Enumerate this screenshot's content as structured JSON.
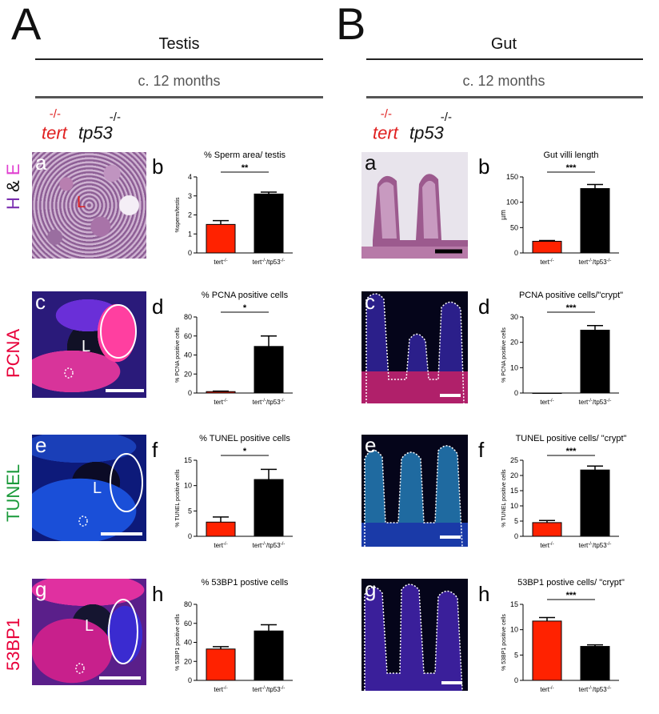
{
  "panel_A": {
    "letter": "A",
    "title": "Testis",
    "age": "c. 12 months"
  },
  "panel_B": {
    "letter": "B",
    "title": "Gut",
    "age": "c. 12 months"
  },
  "genotype": {
    "gene1": "tert",
    "sup1": "-/-",
    "gene2": "tp53",
    "sup2": "-/-"
  },
  "row_labels": {
    "he_h": "H",
    "he_amp": "&",
    "he_e": "E",
    "pcna": "PCNA",
    "tunel": "TUNEL",
    "bp53": "53BP1"
  },
  "micrograph_letters": {
    "testis": [
      "a",
      "c",
      "e",
      "g"
    ],
    "gut": [
      "a",
      "c",
      "e",
      "g"
    ],
    "lumen": "L"
  },
  "colors": {
    "tert_bar": "#ff2200",
    "double_bar": "#000000",
    "tert_text": "#e02020",
    "he_purple": "#7b2fb0",
    "he_pink": "#e040d0",
    "pcna": "#e8003a",
    "tunel": "#1a9a3a",
    "bp53": "#e8003a"
  },
  "chart_data": [
    {
      "letter": "b",
      "type": "bar",
      "title": "% Sperm area/ testis",
      "ylabel": "%sperm/testis",
      "categories": [
        "tert-/-",
        "tert-/-/tp53-/-"
      ],
      "values": [
        1.5,
        3.1
      ],
      "errors": [
        0.2,
        0.1
      ],
      "ylim": [
        0,
        4
      ],
      "yticks": [
        0,
        1,
        2,
        3,
        4
      ],
      "significance": "**"
    },
    {
      "letter": "d",
      "type": "bar",
      "title": "% PCNA positive cells",
      "ylabel": "% PCNA positive cells",
      "categories": [
        "tert-/-",
        "tert-/-/tp53-/-"
      ],
      "values": [
        1.5,
        49
      ],
      "errors": [
        0.5,
        11
      ],
      "ylim": [
        0,
        80
      ],
      "yticks": [
        0,
        20,
        40,
        60,
        80
      ],
      "significance": "*"
    },
    {
      "letter": "f",
      "type": "bar",
      "title": "% TUNEL positive cells",
      "ylabel": "% TUNEL positive cells",
      "categories": [
        "tert-/-",
        "tert-/-/tp53-/-"
      ],
      "values": [
        2.8,
        11.2
      ],
      "errors": [
        1.0,
        2.0
      ],
      "ylim": [
        0,
        15
      ],
      "yticks": [
        0,
        5,
        10,
        15
      ],
      "significance": "*"
    },
    {
      "letter": "h",
      "type": "bar",
      "title": "% 53BP1 postive cells",
      "ylabel": "% 53BP1 positive cells",
      "categories": [
        "tert-/-",
        "tert-/-/tp53-/-"
      ],
      "values": [
        33,
        52
      ],
      "errors": [
        2.5,
        6.5
      ],
      "ylim": [
        0,
        80
      ],
      "yticks": [
        0,
        20,
        40,
        60,
        80
      ],
      "significance": ""
    },
    {
      "letter": "b",
      "type": "bar",
      "title": "Gut villi length",
      "ylabel": "µm",
      "categories": [
        "tert-/-",
        "tert-/-/tp53-/-"
      ],
      "values": [
        23,
        127
      ],
      "errors": [
        1.5,
        8
      ],
      "ylim": [
        0,
        150
      ],
      "yticks": [
        0,
        50,
        100,
        150
      ],
      "significance": "***"
    },
    {
      "letter": "d",
      "type": "bar",
      "title": "PCNA positive cells/\"crypt\"",
      "ylabel": "% PCNA positive cells",
      "categories": [
        "tert-/-",
        "tert-/-/tp53-/-"
      ],
      "values": [
        0,
        24.8
      ],
      "errors": [
        0,
        1.8
      ],
      "ylim": [
        0,
        30
      ],
      "yticks": [
        0,
        10,
        20,
        30
      ],
      "significance": "***"
    },
    {
      "letter": "f",
      "type": "bar",
      "title": "TUNEL positive cells/ \"crypt\"",
      "ylabel": "% TUNEL positive cells",
      "categories": [
        "tert-/-",
        "tert-/-/tp53-/-"
      ],
      "values": [
        4.5,
        21.8
      ],
      "errors": [
        0.7,
        1.3
      ],
      "ylim": [
        0,
        25
      ],
      "yticks": [
        0,
        5,
        10,
        15,
        20,
        25
      ],
      "significance": "***"
    },
    {
      "letter": "h",
      "type": "bar",
      "title": "53BP1 postive cells/ \"crypt\"",
      "ylabel": "% 53BP1 positive cells",
      "categories": [
        "tert-/-",
        "tert-/-/tp53-/-"
      ],
      "values": [
        11.7,
        6.7
      ],
      "errors": [
        0.7,
        0.3
      ],
      "ylim": [
        0,
        15
      ],
      "yticks": [
        0,
        5,
        10,
        15
      ],
      "significance": "***"
    }
  ]
}
